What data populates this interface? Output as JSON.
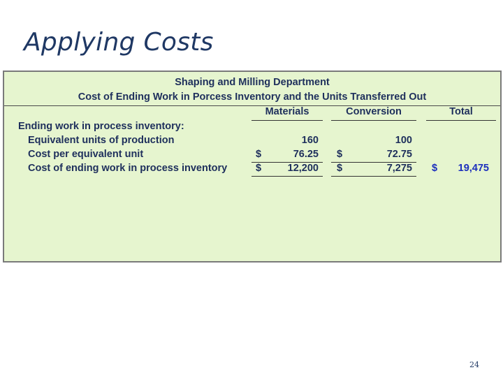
{
  "slide": {
    "title": "Applying Costs",
    "page_number": "24"
  },
  "report": {
    "title_line1": "Shaping and Milling Department",
    "title_line2": "Cost of Ending Work in Porcess Inventory and the Units Transferred Out",
    "columns": {
      "materials": "Materials",
      "conversion": "Conversion",
      "total": "Total"
    },
    "section_label": "Ending work in process inventory:",
    "rows": [
      {
        "label": "Equivalent units of production",
        "materials_sign": "",
        "materials": "160",
        "conversion_sign": "",
        "conversion": "100",
        "total_sign": "",
        "total": ""
      },
      {
        "label": "Cost per equivalent unit",
        "materials_sign": "$",
        "materials": "76.25",
        "conversion_sign": "$",
        "conversion": "72.75",
        "total_sign": "",
        "total": ""
      },
      {
        "label": "Cost of ending work in process inventory",
        "materials_sign": "$",
        "materials": "12,200",
        "conversion_sign": "$",
        "conversion": "7,275",
        "total_sign": "$",
        "total": "19,475"
      }
    ]
  },
  "colors": {
    "title": "#1f3864",
    "panel_bg": "#e6f5cf",
    "text": "#1e2f5c",
    "total_highlight": "#1c2fbd"
  }
}
